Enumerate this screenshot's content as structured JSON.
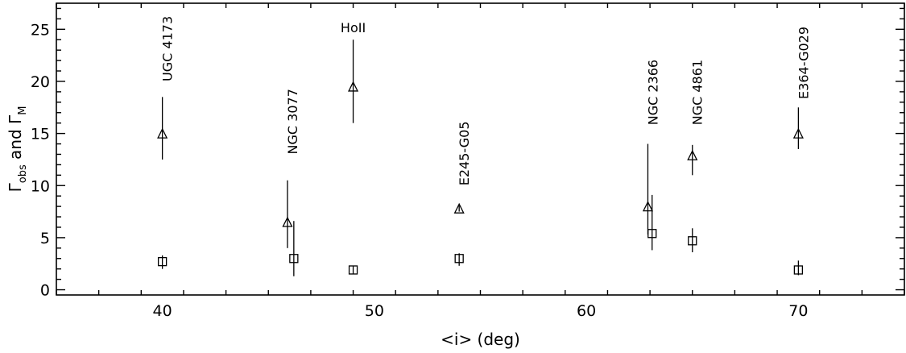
{
  "chart_data": {
    "type": "scatter",
    "xlabel": "<i> (deg)",
    "ylabel_parts": {
      "gamma": "Γ",
      "obs": "obs",
      "and": " and ",
      "m": "M"
    },
    "xlim": [
      35,
      75
    ],
    "ylim": [
      -0.5,
      27.5
    ],
    "xticks": [
      40,
      50,
      60,
      70
    ],
    "yticks": [
      0,
      5,
      10,
      15,
      20,
      25
    ],
    "grid": false,
    "series": [
      {
        "marker": "triangle",
        "points": [
          {
            "x": 40.0,
            "y": 15.0,
            "ylo": 12.5,
            "yhi": 18.5
          },
          {
            "x": 45.9,
            "y": 6.5,
            "ylo": 4.0,
            "yhi": 10.5
          },
          {
            "x": 49.0,
            "y": 19.5,
            "ylo": 16.0,
            "yhi": 24.0
          },
          {
            "x": 54.0,
            "y": 7.8,
            "ylo": 7.5,
            "yhi": 8.1
          },
          {
            "x": 62.9,
            "y": 8.0,
            "ylo": 5.3,
            "yhi": 14.0
          },
          {
            "x": 65.0,
            "y": 12.9,
            "ylo": 11.0,
            "yhi": 13.9
          },
          {
            "x": 70.0,
            "y": 15.0,
            "ylo": 13.5,
            "yhi": 17.5
          }
        ]
      },
      {
        "marker": "square",
        "points": [
          {
            "x": 40.0,
            "y": 2.7,
            "ylo": 2.0,
            "yhi": 3.3
          },
          {
            "x": 46.2,
            "y": 3.0,
            "ylo": 1.3,
            "yhi": 6.6
          },
          {
            "x": 49.0,
            "y": 1.9,
            "ylo": 1.5,
            "yhi": 2.3
          },
          {
            "x": 54.0,
            "y": 3.0,
            "ylo": 2.3,
            "yhi": 3.5
          },
          {
            "x": 63.1,
            "y": 5.4,
            "ylo": 3.8,
            "yhi": 9.1
          },
          {
            "x": 65.0,
            "y": 4.7,
            "ylo": 3.6,
            "yhi": 5.9
          },
          {
            "x": 70.0,
            "y": 1.9,
            "ylo": 1.4,
            "yhi": 2.8
          }
        ]
      }
    ],
    "annotations": [
      {
        "text": "UGC 4173",
        "x": 40.0,
        "y": 20.0,
        "rotate": true
      },
      {
        "text": "NGC 3077",
        "x": 45.9,
        "y": 13.0,
        "rotate": true
      },
      {
        "text": "HoII",
        "x": 49.0,
        "y": 24.7,
        "rotate": false
      },
      {
        "text": "E245-G05",
        "x": 54.0,
        "y": 10.0,
        "rotate": true
      },
      {
        "text": "NGC 2366",
        "x": 62.9,
        "y": 15.8,
        "rotate": true
      },
      {
        "text": "NGC 4861",
        "x": 65.0,
        "y": 15.8,
        "rotate": true
      },
      {
        "text": "E364-G029",
        "x": 70.0,
        "y": 18.3,
        "rotate": true
      }
    ]
  }
}
